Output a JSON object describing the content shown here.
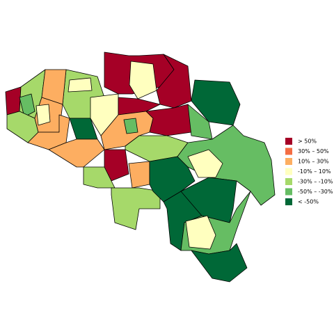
{
  "legend": {
    "items": [
      {
        "label": "> 50%",
        "color": "#a50026"
      },
      {
        "label": "30%  –  50%",
        "color": "#f46d43"
      },
      {
        "label": "10%  –  30%",
        "color": "#fdae61"
      },
      {
        "label": "-10%  –  10%",
        "color": "#ffffbf"
      },
      {
        "label": "-30%  –  -10%",
        "color": "#a6d96a"
      },
      {
        "label": "-50%  –  -30%",
        "color": "#66bd63"
      },
      {
        "label": "< -50%",
        "color": "#006837"
      }
    ]
  }
}
